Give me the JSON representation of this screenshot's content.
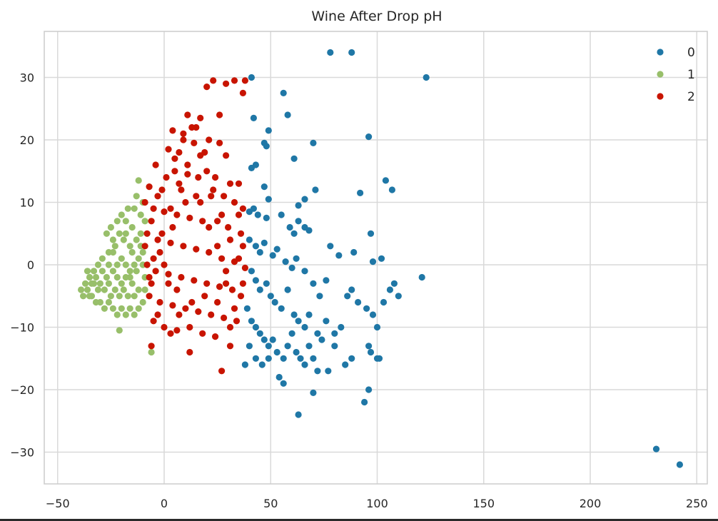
{
  "chart_data": {
    "type": "scatter",
    "title": "Wine After Drop pH",
    "xlabel": "",
    "ylabel": "",
    "xlim": [
      -55,
      255
    ],
    "ylim": [
      -35,
      37
    ],
    "x_ticks": [
      -50,
      0,
      50,
      100,
      150,
      200,
      250
    ],
    "y_ticks": [
      -30,
      -20,
      -10,
      0,
      10,
      20,
      30
    ],
    "x_tick_labels": [
      "−50",
      "0",
      "50",
      "100",
      "150",
      "200",
      "250"
    ],
    "y_tick_labels": [
      "−30",
      "−20",
      "−10",
      "0",
      "10",
      "20",
      "30"
    ],
    "grid": true,
    "legend": {
      "placement": "top-right",
      "entries": [
        "0",
        "1",
        "2"
      ]
    },
    "colors": {
      "0": "#1f77a6",
      "1": "#98bf6a",
      "2": "#c81400",
      "grid": "#d9d9d9",
      "frame": "#cccccc"
    },
    "series": [
      {
        "name": "0",
        "points": [
          [
            78,
            34
          ],
          [
            88,
            34
          ],
          [
            123,
            30
          ],
          [
            41,
            30
          ],
          [
            56,
            27.5
          ],
          [
            58,
            24
          ],
          [
            42,
            23.5
          ],
          [
            49,
            21.5
          ],
          [
            96,
            20.5
          ],
          [
            47,
            19.5
          ],
          [
            48,
            19
          ],
          [
            70,
            19.5
          ],
          [
            61,
            17
          ],
          [
            43,
            16
          ],
          [
            41,
            15.5
          ],
          [
            104,
            13.5
          ],
          [
            107,
            12
          ],
          [
            47,
            12.5
          ],
          [
            71,
            12
          ],
          [
            92,
            11.5
          ],
          [
            63,
            9.5
          ],
          [
            66,
            10.5
          ],
          [
            49,
            10.5
          ],
          [
            40,
            8.5
          ],
          [
            42,
            9
          ],
          [
            44,
            8
          ],
          [
            48,
            7.5
          ],
          [
            55,
            8
          ],
          [
            59,
            6
          ],
          [
            61,
            5
          ],
          [
            63,
            7
          ],
          [
            66,
            6
          ],
          [
            68,
            5.5
          ],
          [
            97,
            5
          ],
          [
            40,
            4
          ],
          [
            43,
            3
          ],
          [
            45,
            2
          ],
          [
            47,
            3.5
          ],
          [
            51,
            1.5
          ],
          [
            53,
            2.5
          ],
          [
            57,
            0.5
          ],
          [
            60,
            -0.5
          ],
          [
            62,
            1
          ],
          [
            66,
            -1
          ],
          [
            70,
            -3
          ],
          [
            73,
            -5
          ],
          [
            76,
            -2.5
          ],
          [
            78,
            3
          ],
          [
            82,
            1.5
          ],
          [
            89,
            2
          ],
          [
            98,
            0.5
          ],
          [
            102,
            1
          ],
          [
            41,
            -1
          ],
          [
            43,
            -2.5
          ],
          [
            45,
            -4
          ],
          [
            48,
            -3
          ],
          [
            50,
            -5
          ],
          [
            52,
            -6
          ],
          [
            55,
            -7
          ],
          [
            58,
            -4
          ],
          [
            61,
            -8
          ],
          [
            63,
            -9
          ],
          [
            66,
            -10
          ],
          [
            68,
            -8
          ],
          [
            72,
            -11
          ],
          [
            74,
            -12
          ],
          [
            76,
            -9
          ],
          [
            80,
            -11
          ],
          [
            83,
            -10
          ],
          [
            86,
            -5
          ],
          [
            88,
            -4
          ],
          [
            91,
            -6
          ],
          [
            95,
            -7
          ],
          [
            98,
            -8
          ],
          [
            100,
            -10
          ],
          [
            103,
            -6
          ],
          [
            106,
            -4
          ],
          [
            108,
            -3
          ],
          [
            110,
            -5
          ],
          [
            39,
            -7
          ],
          [
            41,
            -9
          ],
          [
            43,
            -10
          ],
          [
            45,
            -11
          ],
          [
            47,
            -12
          ],
          [
            49,
            -13
          ],
          [
            51,
            -12
          ],
          [
            53,
            -14
          ],
          [
            56,
            -15
          ],
          [
            58,
            -13
          ],
          [
            60,
            -11
          ],
          [
            62,
            -14
          ],
          [
            64,
            -15
          ],
          [
            66,
            -16
          ],
          [
            68,
            -13
          ],
          [
            70,
            -15
          ],
          [
            72,
            -17
          ],
          [
            77,
            -17
          ],
          [
            80,
            -13
          ],
          [
            85,
            -16
          ],
          [
            88,
            -15
          ],
          [
            96,
            -13
          ],
          [
            97,
            -14
          ],
          [
            100,
            -15
          ],
          [
            101,
            -15
          ],
          [
            121,
            -2
          ],
          [
            40,
            -13
          ],
          [
            43,
            -15
          ],
          [
            38,
            -16
          ],
          [
            46,
            -16
          ],
          [
            49,
            -15
          ],
          [
            54,
            -18
          ],
          [
            56,
            -19
          ],
          [
            70,
            -20.5
          ],
          [
            96,
            -20
          ],
          [
            94,
            -22
          ],
          [
            63,
            -24
          ],
          [
            231,
            -29.5
          ],
          [
            242,
            -32
          ]
        ]
      },
      {
        "name": "1",
        "points": [
          [
            -12,
            13.5
          ],
          [
            -13,
            11
          ],
          [
            -14,
            9
          ],
          [
            -17,
            9
          ],
          [
            -20,
            8
          ],
          [
            -18,
            7
          ],
          [
            -22,
            7
          ],
          [
            -25,
            6
          ],
          [
            -15,
            6
          ],
          [
            -11,
            5
          ],
          [
            -13,
            4
          ],
          [
            -16,
            3
          ],
          [
            -19,
            4
          ],
          [
            -23,
            3
          ],
          [
            -26,
            2
          ],
          [
            -29,
            1
          ],
          [
            -31,
            0
          ],
          [
            -33,
            -1
          ],
          [
            -35,
            -2
          ],
          [
            -37,
            -3
          ],
          [
            -39,
            -4
          ],
          [
            -38,
            -5
          ],
          [
            -36,
            -4
          ],
          [
            -34,
            -5
          ],
          [
            -32,
            -6
          ],
          [
            -30,
            -6
          ],
          [
            -28,
            -7
          ],
          [
            -26,
            -6
          ],
          [
            -24,
            -7
          ],
          [
            -22,
            -8
          ],
          [
            -20,
            -7
          ],
          [
            -18,
            -8
          ],
          [
            -16,
            -7
          ],
          [
            -14,
            -8
          ],
          [
            -12,
            -7
          ],
          [
            -10,
            -6
          ],
          [
            -9,
            -4
          ],
          [
            -9,
            -2
          ],
          [
            -10,
            0
          ],
          [
            -10,
            2
          ],
          [
            -11,
            3
          ],
          [
            -12,
            1
          ],
          [
            -14,
            0
          ],
          [
            -16,
            -1
          ],
          [
            -18,
            -2
          ],
          [
            -20,
            -3
          ],
          [
            -22,
            -2
          ],
          [
            -24,
            -1
          ],
          [
            -26,
            -3
          ],
          [
            -28,
            -4
          ],
          [
            -30,
            -3
          ],
          [
            -32,
            -2
          ],
          [
            -34,
            -3
          ],
          [
            -36,
            -1
          ],
          [
            -27,
            5
          ],
          [
            -24,
            4
          ],
          [
            -21,
            5
          ],
          [
            -18,
            5
          ],
          [
            -15,
            2
          ],
          [
            -13,
            -1
          ],
          [
            -15,
            -3
          ],
          [
            -17,
            -5
          ],
          [
            -19,
            -4
          ],
          [
            -21,
            -5
          ],
          [
            -23,
            -4
          ],
          [
            -25,
            -5
          ],
          [
            -27,
            -2
          ],
          [
            -29,
            -1
          ],
          [
            -31,
            -4
          ],
          [
            -33,
            -3
          ],
          [
            -35,
            -5
          ],
          [
            -12,
            -4
          ],
          [
            -14,
            -5
          ],
          [
            -16,
            -2
          ],
          [
            -18,
            0
          ],
          [
            -20,
            1
          ],
          [
            -22,
            0
          ],
          [
            -24,
            2
          ],
          [
            -26,
            0
          ],
          [
            -11,
            8
          ],
          [
            -9,
            7
          ],
          [
            -10,
            10
          ],
          [
            -21,
            -10.5
          ],
          [
            -6,
            -14
          ]
        ]
      },
      {
        "name": "2",
        "points": [
          [
            23,
            29.5
          ],
          [
            33,
            29.5
          ],
          [
            38,
            29.5
          ],
          [
            29,
            29
          ],
          [
            20,
            28.5
          ],
          [
            37,
            27.5
          ],
          [
            11,
            24
          ],
          [
            26,
            24
          ],
          [
            17,
            23.5
          ],
          [
            13,
            22
          ],
          [
            4,
            21.5
          ],
          [
            9,
            21
          ],
          [
            21,
            20
          ],
          [
            14,
            19.5
          ],
          [
            26,
            19.5
          ],
          [
            2,
            18.5
          ],
          [
            7,
            18
          ],
          [
            17,
            17.5
          ],
          [
            29,
            17.5
          ],
          [
            -4,
            16
          ],
          [
            5,
            15
          ],
          [
            11,
            14.5
          ],
          [
            20,
            15
          ],
          [
            24,
            14
          ],
          [
            31,
            13
          ],
          [
            35,
            13
          ],
          [
            -7,
            12.5
          ],
          [
            -1,
            12
          ],
          [
            8,
            12
          ],
          [
            15,
            11
          ],
          [
            22,
            11
          ],
          [
            28,
            11
          ],
          [
            33,
            10
          ],
          [
            37,
            9
          ],
          [
            -9,
            10
          ],
          [
            -5,
            9
          ],
          [
            0,
            8.5
          ],
          [
            6,
            8
          ],
          [
            12,
            7.5
          ],
          [
            18,
            7
          ],
          [
            25,
            7
          ],
          [
            30,
            6
          ],
          [
            36,
            5
          ],
          [
            -8,
            5
          ],
          [
            -3,
            4
          ],
          [
            3,
            3.5
          ],
          [
            9,
            3
          ],
          [
            15,
            2.5
          ],
          [
            21,
            2
          ],
          [
            27,
            1
          ],
          [
            33,
            0.5
          ],
          [
            38,
            -0.5
          ],
          [
            -8,
            0
          ],
          [
            -4,
            -1
          ],
          [
            2,
            -1.5
          ],
          [
            8,
            -2
          ],
          [
            14,
            -2.5
          ],
          [
            20,
            -3
          ],
          [
            26,
            -3.5
          ],
          [
            32,
            -4
          ],
          [
            36,
            -5
          ],
          [
            -7,
            -5
          ],
          [
            -2,
            -6
          ],
          [
            4,
            -6.5
          ],
          [
            10,
            -7
          ],
          [
            16,
            -7.5
          ],
          [
            22,
            -8
          ],
          [
            28,
            -8.5
          ],
          [
            34,
            -9
          ],
          [
            -5,
            -9
          ],
          [
            0,
            -10
          ],
          [
            6,
            -10.5
          ],
          [
            12,
            -10
          ],
          [
            18,
            -11
          ],
          [
            24,
            -11.5
          ],
          [
            31,
            -10
          ],
          [
            -6,
            -13
          ],
          [
            12,
            -14
          ],
          [
            27,
            -17
          ],
          [
            31,
            -13
          ],
          [
            0,
            0
          ],
          [
            -2,
            2
          ],
          [
            4,
            6
          ],
          [
            10,
            10
          ],
          [
            16,
            14
          ],
          [
            2,
            -3
          ],
          [
            6,
            -4
          ],
          [
            -6,
            -3
          ],
          [
            -9,
            3
          ],
          [
            -6,
            7
          ],
          [
            -3,
            11
          ],
          [
            1,
            14
          ],
          [
            5,
            17
          ],
          [
            9,
            20
          ],
          [
            15,
            22
          ],
          [
            19,
            18
          ],
          [
            23,
            12
          ],
          [
            27,
            8
          ],
          [
            31,
            4
          ],
          [
            35,
            1
          ],
          [
            29,
            -1
          ],
          [
            25,
            -6
          ],
          [
            19,
            -5
          ],
          [
            13,
            -6
          ],
          [
            7,
            -8
          ],
          [
            3,
            -11
          ],
          [
            -3,
            -8
          ],
          [
            -7,
            -2
          ],
          [
            -5,
            1
          ],
          [
            -1,
            5
          ],
          [
            3,
            9
          ],
          [
            7,
            13
          ],
          [
            11,
            16
          ],
          [
            17,
            10
          ],
          [
            21,
            6
          ],
          [
            25,
            3
          ],
          [
            29,
            -3
          ],
          [
            33,
            -7
          ],
          [
            37,
            -3
          ],
          [
            37,
            3
          ],
          [
            35,
            8
          ]
        ]
      }
    ]
  }
}
